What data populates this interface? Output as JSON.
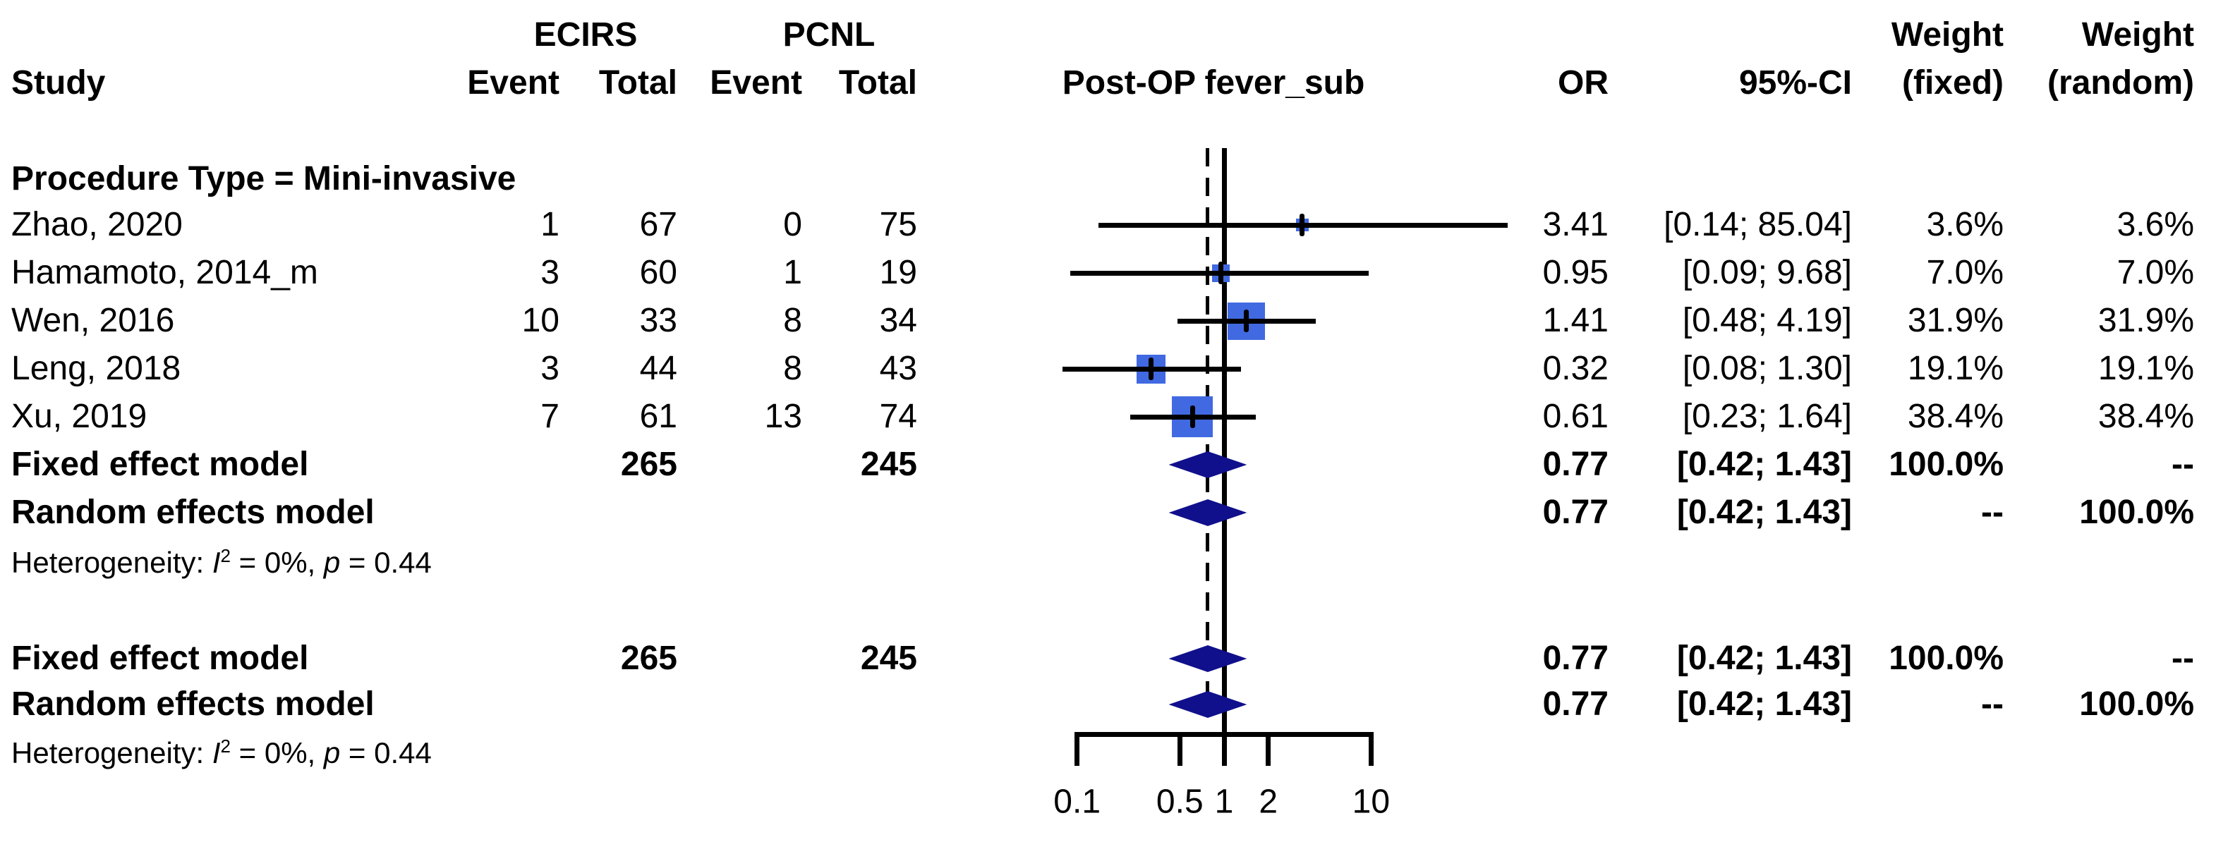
{
  "header": {
    "ecirs": "ECIRS",
    "pcnl": "PCNL",
    "study": "Study",
    "event": "Event",
    "total": "Total",
    "weight": "Weight",
    "or": "OR",
    "ci": "95%-CI",
    "fixed": "(fixed)",
    "random": "(random)",
    "plot_title": "Post-OP fever_sub"
  },
  "chart_data": {
    "type": "forest",
    "title": "Post-OP fever_sub",
    "effect_measure": "OR",
    "x_scale": "log10",
    "xlim": [
      0.1,
      10
    ],
    "x_ticks": [
      {
        "label": "0.1",
        "value": 0.1
      },
      {
        "label": "0.5",
        "value": 0.5
      },
      {
        "label": "1",
        "value": 1
      },
      {
        "label": "2",
        "value": 2
      },
      {
        "label": "10",
        "value": 10
      }
    ],
    "ref_line": 1.0,
    "pooled_dashed_line": 0.77,
    "group_label": "Procedure Type = Mini-invasive",
    "square_color": "#4169E1",
    "diamond_color": "#10108C",
    "studies": [
      {
        "label": "Zhao, 2020",
        "ecirs_event": "1",
        "ecirs_total": "67",
        "pcnl_event": "0",
        "pcnl_total": "75",
        "or": 3.41,
        "ci_low": 0.14,
        "ci_high": 85.04,
        "or_text": "3.41",
        "ci_text": "[0.14; 85.04]",
        "weight_fixed": "3.6%",
        "weight_random": "3.6%",
        "weight_value": 3.6
      },
      {
        "label": "Hamamoto, 2014_m",
        "ecirs_event": "3",
        "ecirs_total": "60",
        "pcnl_event": "1",
        "pcnl_total": "19",
        "or": 0.95,
        "ci_low": 0.09,
        "ci_high": 9.68,
        "or_text": "0.95",
        "ci_text": "[0.09; 9.68]",
        "weight_fixed": "7.0%",
        "weight_random": "7.0%",
        "weight_value": 7.0
      },
      {
        "label": "Wen, 2016",
        "ecirs_event": "10",
        "ecirs_total": "33",
        "pcnl_event": "8",
        "pcnl_total": "34",
        "or": 1.41,
        "ci_low": 0.48,
        "ci_high": 4.19,
        "or_text": "1.41",
        "ci_text": "[0.48; 4.19]",
        "weight_fixed": "31.9%",
        "weight_random": "31.9%",
        "weight_value": 31.9
      },
      {
        "label": "Leng, 2018",
        "ecirs_event": "3",
        "ecirs_total": "44",
        "pcnl_event": "8",
        "pcnl_total": "43",
        "or": 0.32,
        "ci_low": 0.08,
        "ci_high": 1.3,
        "or_text": "0.32",
        "ci_text": "[0.08; 1.30]",
        "weight_fixed": "19.1%",
        "weight_random": "19.1%",
        "weight_value": 19.1
      },
      {
        "label": "Xu, 2019",
        "ecirs_event": "7",
        "ecirs_total": "61",
        "pcnl_event": "13",
        "pcnl_total": "74",
        "or": 0.61,
        "ci_low": 0.23,
        "ci_high": 1.64,
        "or_text": "0.61",
        "ci_text": "[0.23; 1.64]",
        "weight_fixed": "38.4%",
        "weight_random": "38.4%",
        "weight_value": 38.4
      }
    ],
    "summaries": [
      {
        "label": "Fixed effect model",
        "ecirs_total": "265",
        "pcnl_total": "245",
        "or": 0.77,
        "ci_low": 0.42,
        "ci_high": 1.43,
        "or_text": "0.77",
        "ci_text": "[0.42; 1.43]",
        "weight_fixed": "100.0%",
        "weight_random": "--"
      },
      {
        "label": "Random effects model",
        "ecirs_total": "",
        "pcnl_total": "",
        "or": 0.77,
        "ci_low": 0.42,
        "ci_high": 1.43,
        "or_text": "0.77",
        "ci_text": "[0.42; 1.43]",
        "weight_fixed": "--",
        "weight_random": "100.0%"
      },
      {
        "label": "Fixed effect model",
        "ecirs_total": "265",
        "pcnl_total": "245",
        "or": 0.77,
        "ci_low": 0.42,
        "ci_high": 1.43,
        "or_text": "0.77",
        "ci_text": "[0.42; 1.43]",
        "weight_fixed": "100.0%",
        "weight_random": "--"
      },
      {
        "label": "Random effects model",
        "ecirs_total": "",
        "pcnl_total": "",
        "or": 0.77,
        "ci_low": 0.42,
        "ci_high": 1.43,
        "or_text": "0.77",
        "ci_text": "[0.42; 1.43]",
        "weight_fixed": "--",
        "weight_random": "100.0%"
      }
    ],
    "heterogeneity": {
      "prefix": "Heterogeneity: ",
      "stat": "I",
      "sup": "2",
      "mid": " = 0%, ",
      "pvar": "p",
      "tail": " = 0.44"
    }
  }
}
